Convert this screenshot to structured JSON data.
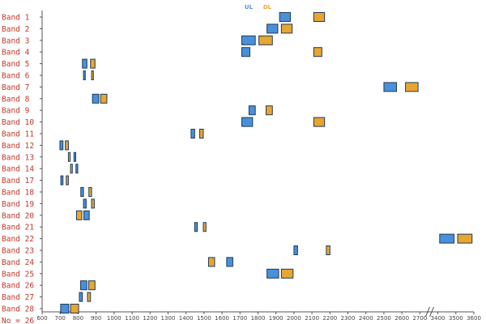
{
  "chart_data": {
    "type": "range-bar",
    "title": "",
    "xlabel": "",
    "ylabel": "",
    "xlim": [
      600,
      3600
    ],
    "x_break": [
      2750,
      3350
    ],
    "grid": false,
    "legend_position": "top-center",
    "colors": {
      "UL": "#4a90d9",
      "DL": "#e8a530",
      "edge": "#1f3b5a"
    },
    "legend": [
      {
        "key": "UL",
        "label": "UL"
      },
      {
        "key": "DL",
        "label": "DL"
      }
    ],
    "x_ticks": [
      {
        "value": 600,
        "label": "600"
      },
      {
        "value": 700,
        "label": "700"
      },
      {
        "value": 800,
        "label": "800"
      },
      {
        "value": 900,
        "label": "900"
      },
      {
        "value": 1000,
        "label": "1000"
      },
      {
        "value": 1100,
        "label": "1100"
      },
      {
        "value": 1200,
        "label": "1200"
      },
      {
        "value": 1300,
        "label": "1300"
      },
      {
        "value": 1400,
        "label": "1400"
      },
      {
        "value": 1500,
        "label": "1500"
      },
      {
        "value": 1600,
        "label": "1600"
      },
      {
        "value": 1700,
        "label": "1700"
      },
      {
        "value": 1800,
        "label": "1800"
      },
      {
        "value": 1900,
        "label": "1900"
      },
      {
        "value": 2000,
        "label": "2000"
      },
      {
        "value": 2100,
        "label": "2100"
      },
      {
        "value": 2200,
        "label": "2200"
      },
      {
        "value": 2300,
        "label": "2300"
      },
      {
        "value": 2400,
        "label": "2400"
      },
      {
        "value": 2500,
        "label": "2500"
      },
      {
        "value": 2600,
        "label": "2600"
      },
      {
        "value": 2700,
        "label": "2700"
      },
      {
        "value": 3400,
        "label": "3400"
      },
      {
        "value": 3500,
        "label": "3500"
      },
      {
        "value": 3600,
        "label": "3600"
      }
    ],
    "bands": [
      {
        "name": "Band 1",
        "ul": [
          1920,
          1980
        ],
        "dl": [
          2110,
          2170
        ]
      },
      {
        "name": "Band 2",
        "ul": [
          1850,
          1910
        ],
        "dl": [
          1930,
          1990
        ]
      },
      {
        "name": "Band 3",
        "ul": [
          1710,
          1785
        ],
        "dl": [
          1805,
          1880
        ]
      },
      {
        "name": "Band 4",
        "ul": [
          1710,
          1755
        ],
        "dl": [
          2110,
          2155
        ]
      },
      {
        "name": "Band 5",
        "ul": [
          824,
          849
        ],
        "dl": [
          869,
          894
        ]
      },
      {
        "name": "Band 6",
        "ul": [
          830,
          840
        ],
        "dl": [
          875,
          885
        ]
      },
      {
        "name": "Band 7",
        "ul": [
          2500,
          2570
        ],
        "dl": [
          2620,
          2690
        ]
      },
      {
        "name": "Band 8",
        "ul": [
          880,
          915
        ],
        "dl": [
          925,
          960
        ]
      },
      {
        "name": "Band 9",
        "ul": [
          1750,
          1785
        ],
        "dl": [
          1845,
          1880
        ]
      },
      {
        "name": "Band 10",
        "ul": [
          1710,
          1770
        ],
        "dl": [
          2110,
          2170
        ]
      },
      {
        "name": "Band 11",
        "ul": [
          1428,
          1448
        ],
        "dl": [
          1476,
          1496
        ]
      },
      {
        "name": "Band 12",
        "ul": [
          699,
          716
        ],
        "dl": [
          729,
          746
        ]
      },
      {
        "name": "Band 13",
        "ul": [
          777,
          787
        ],
        "dl": [
          746,
          756
        ]
      },
      {
        "name": "Band 14",
        "ul": [
          788,
          798
        ],
        "dl": [
          758,
          768
        ]
      },
      {
        "name": "Band 17",
        "ul": [
          704,
          716
        ],
        "dl": [
          734,
          746
        ]
      },
      {
        "name": "Band 18",
        "ul": [
          815,
          830
        ],
        "dl": [
          860,
          875
        ]
      },
      {
        "name": "Band 19",
        "ul": [
          830,
          845
        ],
        "dl": [
          875,
          890
        ]
      },
      {
        "name": "Band 20",
        "ul": [
          832,
          862
        ],
        "dl": [
          791,
          821
        ]
      },
      {
        "name": "Band 21",
        "ul": [
          1448,
          1463
        ],
        "dl": [
          1496,
          1511
        ]
      },
      {
        "name": "Band 22",
        "ul": [
          3410,
          3490
        ],
        "dl": [
          3510,
          3590
        ]
      },
      {
        "name": "Band 23",
        "ul": [
          2000,
          2020
        ],
        "dl": [
          2180,
          2200
        ]
      },
      {
        "name": "Band 24",
        "ul": [
          1626,
          1660
        ],
        "dl": [
          1525,
          1559
        ]
      },
      {
        "name": "Band 25",
        "ul": [
          1850,
          1915
        ],
        "dl": [
          1930,
          1995
        ]
      },
      {
        "name": "Band 26",
        "ul": [
          814,
          849
        ],
        "dl": [
          859,
          894
        ]
      },
      {
        "name": "Band 27",
        "ul": [
          807,
          824
        ],
        "dl": [
          852,
          869
        ]
      },
      {
        "name": "Band 28",
        "ul": [
          703,
          748
        ],
        "dl": [
          758,
          803
        ]
      }
    ],
    "footer_label": "No = 26"
  }
}
